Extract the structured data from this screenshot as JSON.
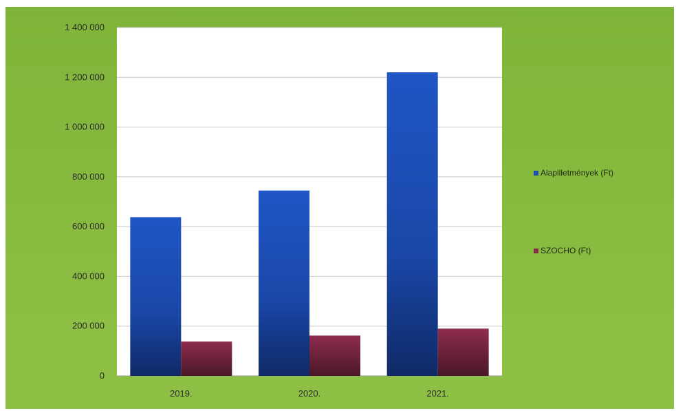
{
  "chart_data": {
    "type": "bar",
    "categories": [
      "2019.",
      "2020.",
      "2021."
    ],
    "series": [
      {
        "name": "Alapilletmények (Ft)",
        "values": [
          638000,
          745000,
          1220000
        ],
        "color": "#1f4fb5"
      },
      {
        "name": "SZOCHO (Ft)",
        "values": [
          138000,
          162000,
          190000
        ],
        "color": "#8a2a4a"
      }
    ],
    "yticks": [
      "0",
      "200 000",
      "400 000",
      "600 000",
      "800 000",
      "1 000 000",
      "1 200 000",
      "1 400 000"
    ],
    "ylim": [
      0,
      1400000
    ],
    "grid": true,
    "legend_position": "right",
    "plot_background": "#ffffff",
    "frame_background": "#86ba3e"
  }
}
